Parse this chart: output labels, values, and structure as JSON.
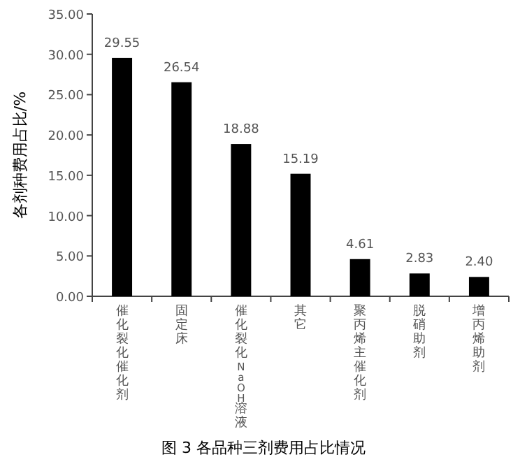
{
  "chart_data": {
    "type": "bar",
    "ylabel": "各剂种费用占比/%",
    "categories": [
      "催化裂化催化剂",
      "固定床",
      "催化裂化NaOH溶液",
      "其它",
      "聚丙烯主催化剂",
      "脱硝助剂",
      "增丙烯助剂"
    ],
    "series": [
      {
        "color": "#000000",
        "values": [
          29.55,
          26.54,
          18.88,
          15.19,
          4.61,
          2.83,
          2.4
        ],
        "value_labels": [
          "29.55",
          "26.54",
          "18.88",
          "15.19",
          "4.61",
          "2.83",
          "2.40"
        ]
      }
    ],
    "ylim": [
      0,
      35
    ],
    "yticks": [
      {
        "value": 0,
        "label": "0.00"
      },
      {
        "value": 5,
        "label": "5.00"
      },
      {
        "value": 10,
        "label": "10.00"
      },
      {
        "value": 15,
        "label": "15.00"
      },
      {
        "value": 20,
        "label": "20.00"
      },
      {
        "value": 25,
        "label": "25.00"
      },
      {
        "value": 30,
        "label": "30.00"
      },
      {
        "value": 35,
        "label": "35.00"
      }
    ],
    "annotations": [
      "图 3 各品种三剂费用占比情况"
    ],
    "grid": false
  }
}
